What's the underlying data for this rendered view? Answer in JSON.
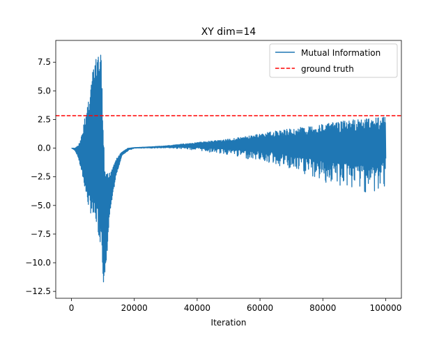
{
  "chart_data": {
    "type": "line",
    "title": "XY dim=14",
    "xlabel": "Iteration",
    "ylabel": "",
    "xlim": [
      -5000,
      105000
    ],
    "ylim": [
      -13.1,
      9.4
    ],
    "xticks": [
      0,
      20000,
      40000,
      60000,
      80000,
      100000
    ],
    "xtick_labels": [
      "0",
      "20000",
      "40000",
      "60000",
      "80000",
      "100000"
    ],
    "yticks": [
      -12.5,
      -10.0,
      -7.5,
      -5.0,
      -2.5,
      0.0,
      2.5,
      5.0,
      7.5
    ],
    "ytick_labels": [
      "−12.5",
      "−10.0",
      "−7.5",
      "−5.0",
      "−2.5",
      "0.0",
      "2.5",
      "5.0",
      "7.5"
    ],
    "grid": false,
    "legend_position": "top-right",
    "colors": {
      "series": "#1f77b4",
      "ground_truth": "#ff0000"
    },
    "series": [
      {
        "name": "Mutual Information",
        "style": "solid",
        "x": [
          0,
          1000,
          2000,
          3000,
          4000,
          5000,
          6000,
          7000,
          8000,
          9000,
          9500,
          10000,
          10500,
          11000,
          12000,
          14000,
          16000,
          18000,
          20000,
          25000,
          30000,
          35000,
          40000,
          45000,
          50000,
          55000,
          60000,
          65000,
          70000,
          75000,
          80000,
          85000,
          90000,
          95000,
          98000,
          100000
        ],
        "upper": [
          0.0,
          0.0,
          0.2,
          0.8,
          2.3,
          3.8,
          5.5,
          7.0,
          8.0,
          8.3,
          8.3,
          3.0,
          -1.2,
          -2.2,
          -2.2,
          -1.0,
          -0.35,
          0.0,
          0.05,
          0.12,
          0.2,
          0.35,
          0.5,
          0.65,
          0.8,
          1.0,
          1.25,
          1.5,
          1.7,
          1.9,
          2.1,
          2.3,
          2.5,
          2.7,
          2.8,
          2.85
        ],
        "lower": [
          0.0,
          -0.2,
          -0.8,
          -2.0,
          -3.3,
          -4.9,
          -5.7,
          -6.5,
          -6.8,
          -8.3,
          -8.0,
          -11.9,
          -12.0,
          -10.0,
          -6.0,
          -2.5,
          -0.6,
          -0.2,
          0.0,
          0.0,
          0.0,
          -0.05,
          -0.2,
          -0.4,
          -0.6,
          -0.9,
          -1.1,
          -1.5,
          -2.1,
          -2.5,
          -3.0,
          -3.4,
          -3.6,
          -4.0,
          -4.1,
          -3.1
        ]
      },
      {
        "name": "ground truth",
        "style": "dashed",
        "constant": 2.83
      }
    ]
  }
}
